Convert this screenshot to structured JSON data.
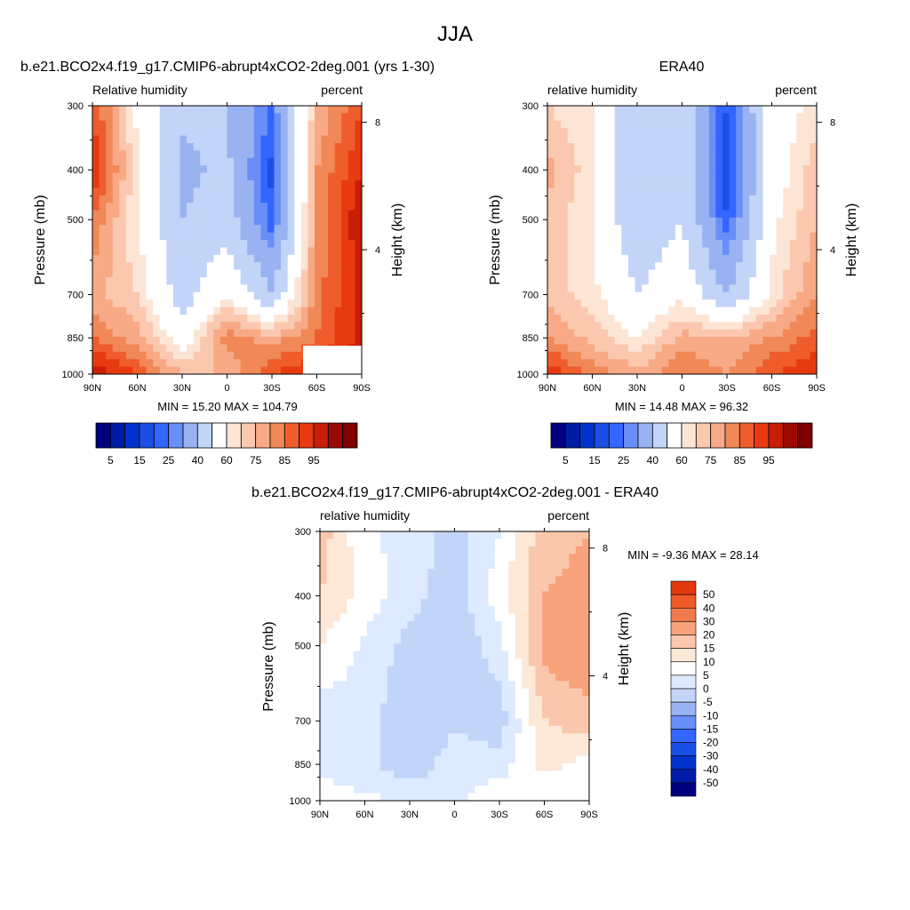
{
  "figure": {
    "title": "JJA"
  },
  "colors": {
    "abs_levels": [
      "#00007f",
      "#001ba5",
      "#0033cc",
      "#1a4fe6",
      "#3366ff",
      "#6a8ef7",
      "#99b3f2",
      "#c2d4f7",
      "#ffffff",
      "#fde5d6",
      "#fbc8af",
      "#f8a985",
      "#f08858",
      "#ef5d2c",
      "#e83a10",
      "#c81e05",
      "#9b0a00",
      "#7f0000"
    ],
    "diff_levels": [
      "#00007f",
      "#001ba5",
      "#0033cc",
      "#1a4fe6",
      "#3366ff",
      "#6a8ef7",
      "#99b3f2",
      "#c2d4f7",
      "#ddeaff",
      "#ffffff",
      "#fde8d8",
      "#fbc7ac",
      "#f8a37c",
      "#f07a4b",
      "#ef5a28",
      "#e2380e",
      "#b81a03",
      "#7f0000"
    ],
    "missing": "#ffffff"
  },
  "chart_data": [
    {
      "type": "heatmap",
      "id": "model",
      "title": "b.e21.BCO2x4.f19_g17.CMIP6-abrupt4xCO2-2deg.001 (yrs 1-30)",
      "left_label": "Relative humidity",
      "right_label": "percent",
      "ylabel": "Pressure (mb)",
      "y2label": "Height (km)",
      "x_ticks": [
        "90N",
        "60N",
        "30N",
        "0",
        "30S",
        "60S",
        "90S"
      ],
      "y_ticks": [
        "300",
        "400",
        "500",
        "700",
        "850",
        "1000"
      ],
      "y2_ticks": [
        "8",
        "4"
      ],
      "ylim": [
        1000,
        300
      ],
      "y_scale": "log",
      "stats": "MIN =  15.20  MAX = 104.79",
      "colorbar": {
        "orientation": "horizontal",
        "labels": [
          "5",
          "15",
          "25",
          "40",
          "60",
          "75",
          "85",
          "95"
        ]
      },
      "x": [
        90,
        60,
        30,
        0,
        -30,
        -60,
        -90
      ],
      "p": [
        300,
        400,
        500,
        700,
        850,
        1000
      ],
      "values": [
        [
          85,
          58,
          42,
          40,
          25,
          70,
          85
        ],
        [
          90,
          62,
          38,
          42,
          18,
          75,
          90
        ],
        [
          80,
          60,
          40,
          45,
          22,
          75,
          95
        ],
        [
          72,
          65,
          45,
          60,
          40,
          78,
          92
        ],
        [
          80,
          72,
          55,
          78,
          72,
          80,
          92
        ],
        [
          95,
          85,
          70,
          70,
          85,
          90,
          95
        ]
      ]
    },
    {
      "type": "heatmap",
      "id": "obs",
      "title": "ERA40",
      "left_label": "relative humidity",
      "right_label": "percent",
      "ylabel": "Pressure (mb)",
      "y2label": "Height (km)",
      "x_ticks": [
        "90N",
        "60N",
        "30N",
        "0",
        "30S",
        "60S",
        "90S"
      ],
      "y_ticks": [
        "300",
        "400",
        "500",
        "700",
        "850",
        "1000"
      ],
      "y2_ticks": [
        "8",
        "4"
      ],
      "ylim": [
        1000,
        300
      ],
      "y_scale": "log",
      "stats": "MIN =  14.48  MAX =  96.32",
      "colorbar": {
        "orientation": "horizontal",
        "labels": [
          "5",
          "15",
          "25",
          "40",
          "60",
          "75",
          "85",
          "95"
        ]
      },
      "x": [
        90,
        60,
        30,
        0,
        -30,
        -60,
        -90
      ],
      "p": [
        300,
        400,
        500,
        700,
        850,
        1000
      ],
      "values": [
        [
          65,
          60,
          42,
          50,
          20,
          55,
          62
        ],
        [
          72,
          62,
          40,
          48,
          15,
          55,
          68
        ],
        [
          68,
          60,
          42,
          50,
          20,
          58,
          70
        ],
        [
          68,
          62,
          50,
          58,
          40,
          62,
          75
        ],
        [
          75,
          68,
          60,
          72,
          70,
          75,
          82
        ],
        [
          90,
          78,
          72,
          80,
          75,
          85,
          90
        ]
      ]
    },
    {
      "type": "heatmap",
      "id": "diff",
      "title": "b.e21.BCO2x4.f19_g17.CMIP6-abrupt4xCO2-2deg.001 - ERA40",
      "left_label": "relative humidity",
      "right_label": "percent",
      "ylabel": "Pressure (mb)",
      "y2label": "Height (km)",
      "x_ticks": [
        "90N",
        "60N",
        "30N",
        "0",
        "30S",
        "60S",
        "90S"
      ],
      "y_ticks": [
        "300",
        "400",
        "500",
        "700",
        "850",
        "1000"
      ],
      "y2_ticks": [
        "8",
        "4"
      ],
      "ylim": [
        1000,
        300
      ],
      "y_scale": "log",
      "stats": "MIN =  -9.36  MAX =  28.14",
      "colorbar": {
        "orientation": "vertical",
        "labels": [
          "50",
          "40",
          "30",
          "20",
          "15",
          "10",
          "5",
          "0",
          "-5",
          "-10",
          "-15",
          "-20",
          "-30",
          "-40",
          "-50"
        ]
      },
      "x": [
        90,
        60,
        30,
        0,
        -30,
        -60,
        -90
      ],
      "p": [
        300,
        400,
        500,
        700,
        850,
        1000
      ],
      "values": [
        [
          18,
          6,
          3,
          -2,
          5,
          18,
          20
        ],
        [
          15,
          8,
          2,
          -3,
          8,
          20,
          22
        ],
        [
          10,
          4,
          -2,
          -5,
          3,
          22,
          25
        ],
        [
          2,
          3,
          -5,
          -1,
          -3,
          15,
          18
        ],
        [
          4,
          2,
          -4,
          3,
          2,
          12,
          8
        ],
        [
          7,
          6,
          5,
          3,
          10,
          6,
          5
        ]
      ]
    }
  ]
}
